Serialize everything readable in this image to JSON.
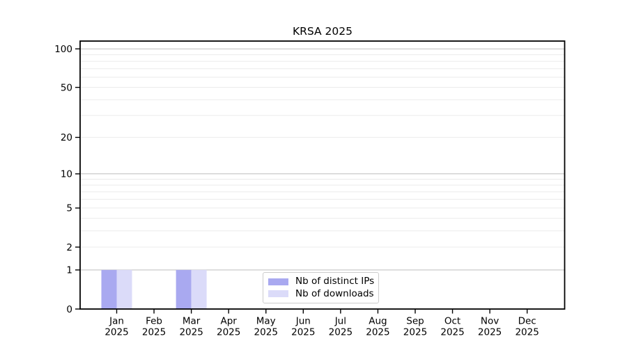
{
  "chart_data": {
    "type": "bar",
    "title": "KRSA 2025",
    "x_categories": [
      "Jan",
      "Feb",
      "Mar",
      "Apr",
      "May",
      "Jun",
      "Jul",
      "Aug",
      "Sep",
      "Oct",
      "Nov",
      "Dec"
    ],
    "x_year": "2025",
    "series": [
      {
        "name": "Nb of distinct IPs",
        "color": "#a9a9f0",
        "values": [
          1,
          0,
          1,
          0,
          0,
          0,
          0,
          0,
          0,
          0,
          0,
          0
        ]
      },
      {
        "name": "Nb of downloads",
        "color": "#dbdbf9",
        "values": [
          1,
          0,
          1,
          0,
          0,
          0,
          0,
          0,
          0,
          0,
          0,
          0
        ]
      }
    ],
    "yscale": "log1p",
    "ylim": [
      0,
      115
    ],
    "yticks": [
      0,
      1,
      2,
      5,
      10,
      20,
      50,
      100
    ],
    "grid": true,
    "grid_minor_values": [
      2,
      3,
      4,
      5,
      6,
      7,
      8,
      9,
      20,
      30,
      40,
      50,
      60,
      70,
      80,
      90
    ],
    "grid_major_values": [
      1,
      10,
      100
    ],
    "legend_position": "inside-bottom-center",
    "colors": {
      "axis": "#000000",
      "text": "#000000",
      "grid_minor": "#ebebeb",
      "grid_major": "#bdbdbd",
      "legend_border": "#cccccc",
      "background": "#ffffff"
    }
  }
}
